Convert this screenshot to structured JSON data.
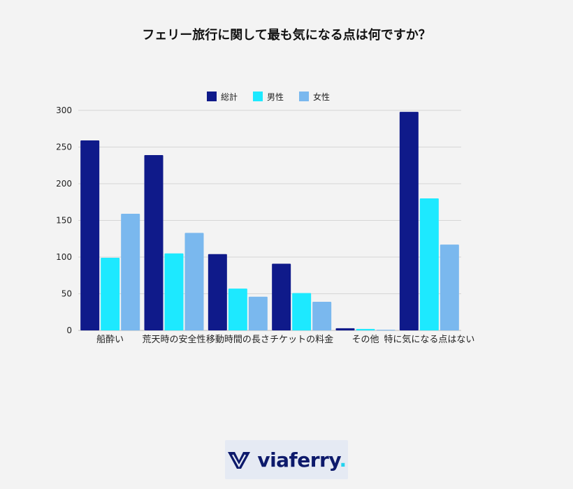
{
  "title": "フェリー旅行に関して最も気になる点は何ですか？",
  "chart_data": {
    "type": "bar",
    "categories": [
      "船酔い",
      "荒天時の安全性",
      "移動時間の長さ",
      "チケットの料金",
      "その他",
      "特に気になる点はない"
    ],
    "series": [
      {
        "name": "総計",
        "color": "#0f1a8a",
        "values": [
          259,
          239,
          104,
          91,
          3,
          298
        ]
      },
      {
        "name": "男性",
        "color": "#1de9ff",
        "values": [
          99,
          105,
          57,
          51,
          2,
          180
        ]
      },
      {
        "name": "女性",
        "color": "#7ab8ee",
        "values": [
          159,
          133,
          46,
          39,
          1,
          117
        ]
      }
    ],
    "yticks": [
      0,
      50,
      100,
      150,
      200,
      250,
      300
    ],
    "ylim": [
      0,
      300
    ],
    "grid": true,
    "legend": "top-center"
  },
  "logo": {
    "brand": "viaferry",
    "dot": "."
  }
}
